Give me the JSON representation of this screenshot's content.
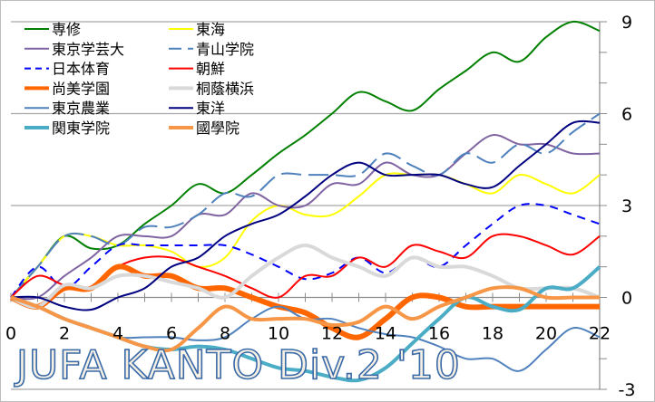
{
  "chart_data": {
    "type": "line",
    "title": "JUFA KANTO Div.2 '10",
    "xlabel": "",
    "ylabel": "",
    "xlim": [
      0,
      22
    ],
    "ylim": [
      -3,
      9
    ],
    "x_ticks": [
      "0",
      "2",
      "4",
      "6",
      "8",
      "10",
      "12",
      "14",
      "16",
      "18",
      "20",
      "22"
    ],
    "y_ticks": [
      "9",
      "6",
      "3",
      "0",
      "-3"
    ],
    "y_axis_side": "right",
    "grid": true,
    "legend_position": "top-left",
    "x": [
      0,
      1,
      2,
      3,
      4,
      5,
      6,
      7,
      8,
      9,
      10,
      11,
      12,
      13,
      14,
      15,
      16,
      17,
      18,
      19,
      20,
      21,
      22
    ],
    "series": [
      {
        "name": "専修",
        "color": "#008000",
        "width": 2,
        "dash": "",
        "values": [
          0,
          1,
          2,
          1.6,
          1.7,
          2.4,
          3,
          3.7,
          3.4,
          4,
          4.7,
          5.3,
          6,
          6.7,
          6.4,
          6.1,
          6.8,
          7.4,
          8,
          7.7,
          8.5,
          9,
          8.7
        ]
      },
      {
        "name": "東海",
        "color": "#ffff00",
        "width": 2,
        "dash": "",
        "values": [
          0,
          1,
          2,
          2,
          1.7,
          1.7,
          1.5,
          1,
          1.3,
          2.5,
          3,
          2.7,
          2.7,
          3.3,
          4,
          4,
          4,
          3.7,
          3.4,
          4,
          3.7,
          3.4,
          4
        ]
      },
      {
        "name": "東京学芸大",
        "color": "#8064a2",
        "width": 2,
        "dash": "",
        "values": [
          0,
          0,
          0.7,
          1.3,
          2,
          2,
          2,
          2.7,
          2.7,
          3.4,
          3,
          3,
          3.7,
          3.7,
          4.4,
          4,
          4,
          4.7,
          5.3,
          5,
          5,
          4.7,
          4.7
        ]
      },
      {
        "name": "青山学院",
        "color": "#4f81bd",
        "width": 2,
        "dash": "22,8",
        "values": [
          0,
          1,
          2,
          2,
          1.7,
          2.3,
          2.3,
          2.7,
          3.4,
          3.3,
          4,
          4,
          4,
          4,
          4.7,
          4.3,
          4,
          4.7,
          4.4,
          5,
          4.7,
          5.4,
          6
        ]
      },
      {
        "name": "日本体育",
        "color": "#0000ff",
        "width": 2,
        "dash": "9,7",
        "values": [
          0,
          1,
          0.3,
          1,
          1.7,
          1.7,
          1.7,
          1.7,
          1.7,
          1.4,
          1,
          0.6,
          0.8,
          1.3,
          0.8,
          1.3,
          1,
          1.7,
          2.4,
          3,
          3,
          2.7,
          2.4
        ]
      },
      {
        "name": "朝鮮",
        "color": "#ff0000",
        "width": 2,
        "dash": "",
        "values": [
          0,
          0.7,
          0.4,
          0.3,
          1,
          1.3,
          1.3,
          1,
          0.7,
          0.3,
          0,
          0.7,
          0.7,
          1.3,
          1,
          1.7,
          1.5,
          1.3,
          2,
          2,
          1.7,
          1.4,
          2
        ]
      },
      {
        "name": "尚美学園",
        "color": "#ff6600",
        "width": 6,
        "dash": "",
        "values": [
          0,
          -0.3,
          0.3,
          0.3,
          1,
          0.7,
          0.7,
          0.3,
          0.3,
          0,
          -0.3,
          -0.5,
          -1,
          -1.3,
          -0.7,
          0,
          0,
          -0.3,
          -0.3,
          -0.3,
          -0.3,
          -0.3,
          -0.3
        ]
      },
      {
        "name": "桐蔭横浜",
        "color": "#d9d9d9",
        "width": 4,
        "dash": "",
        "values": [
          0,
          -0.3,
          0.4,
          0.3,
          0.7,
          0.7,
          0.5,
          0.3,
          0,
          0.7,
          1.3,
          1.7,
          1.3,
          1,
          0.7,
          1.3,
          1,
          1,
          0.7,
          0.3,
          0.3,
          0.3,
          0
        ]
      },
      {
        "name": "東京農業",
        "color": "#4f81bd",
        "width": 2,
        "dash": "",
        "values": [
          0,
          -0.3,
          -0.7,
          -1,
          -1.3,
          -1.3,
          -1.3,
          -1.4,
          -1.3,
          -0.7,
          -0.3,
          -0.7,
          -0.7,
          -1,
          -1.2,
          -1.3,
          -1.6,
          -2,
          -2,
          -2.4,
          -1.7,
          -1,
          -1.3
        ]
      },
      {
        "name": "東洋",
        "color": "#000080",
        "width": 2,
        "dash": "",
        "values": [
          0,
          0,
          -0.3,
          -0.4,
          0,
          0.3,
          1,
          1.3,
          2,
          2.4,
          2.7,
          3.3,
          4,
          4.4,
          4,
          4,
          4,
          3.7,
          3.6,
          4.3,
          5,
          5.7,
          5.7
        ]
      },
      {
        "name": "関東学院",
        "color": "#4bacc6",
        "width": 4,
        "dash": "",
        "values": [
          0,
          -0.3,
          -0.7,
          -1,
          -1.3,
          -1.6,
          -1.7,
          -1.6,
          -1.7,
          -2,
          -2.3,
          -2.4,
          -2.6,
          -2.7,
          -2.3,
          -1.5,
          -0.7,
          0,
          -0.3,
          -0.4,
          0.3,
          0.3,
          1
        ]
      },
      {
        "name": "國學院",
        "color": "#f79646",
        "width": 4,
        "dash": "",
        "values": [
          0,
          -0.3,
          -0.7,
          -1,
          -1.3,
          -1.6,
          -1.7,
          -1,
          -0.3,
          -0.7,
          -0.7,
          -0.7,
          -0.9,
          -0.8,
          -0.3,
          -0.7,
          -0.3,
          0,
          0.3,
          0.3,
          0,
          0,
          0
        ]
      }
    ]
  }
}
